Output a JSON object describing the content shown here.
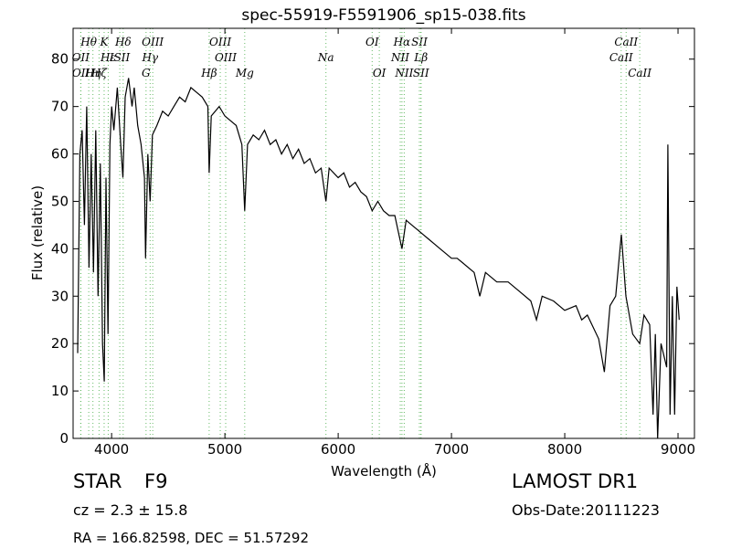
{
  "chart_data": {
    "type": "line",
    "title": "spec-55919-F5591906_sp15-038.fits",
    "xlabel": "Wavelength (Å)",
    "ylabel": "Flux (relative)",
    "xlim": [
      3660,
      9145
    ],
    "ylim": [
      0,
      86.5
    ],
    "xticks": [
      4000,
      5000,
      6000,
      7000,
      8000,
      9000
    ],
    "yticks": [
      0,
      10,
      20,
      30,
      40,
      50,
      60,
      70,
      80
    ],
    "color": "#000000",
    "line_color": "#66bb66",
    "x": [
      3700,
      3720,
      3740,
      3760,
      3780,
      3800,
      3820,
      3840,
      3860,
      3880,
      3900,
      3920,
      3935,
      3950,
      3968,
      3985,
      4000,
      4020,
      4050,
      4080,
      4100,
      4120,
      4150,
      4180,
      4200,
      4230,
      4260,
      4290,
      4300,
      4320,
      4340,
      4360,
      4400,
      4450,
      4500,
      4550,
      4600,
      4650,
      4700,
      4750,
      4800,
      4850,
      4861,
      4880,
      4950,
      5000,
      5050,
      5100,
      5150,
      5175,
      5200,
      5250,
      5300,
      5350,
      5400,
      5450,
      5500,
      5550,
      5600,
      5650,
      5700,
      5750,
      5800,
      5850,
      5892,
      5920,
      6000,
      6050,
      6100,
      6150,
      6200,
      6250,
      6300,
      6350,
      6400,
      6450,
      6500,
      6563,
      6600,
      6650,
      6700,
      6750,
      6800,
      6850,
      6900,
      6950,
      7000,
      7050,
      7100,
      7200,
      7250,
      7300,
      7400,
      7500,
      7600,
      7700,
      7750,
      7800,
      7900,
      8000,
      8100,
      8150,
      8200,
      8300,
      8350,
      8400,
      8450,
      8500,
      8540,
      8600,
      8662,
      8700,
      8750,
      8780,
      8800,
      8820,
      8850,
      8900,
      8910,
      8930,
      8950,
      8970,
      8990,
      9010
    ],
    "values": [
      18,
      60,
      65,
      45,
      70,
      36,
      60,
      35,
      65,
      30,
      58,
      20,
      12,
      55,
      22,
      62,
      70,
      65,
      74,
      62,
      55,
      72,
      76,
      70,
      74,
      66,
      62,
      55,
      38,
      60,
      50,
      64,
      66,
      69,
      68,
      70,
      72,
      71,
      74,
      73,
      72,
      70,
      56,
      68,
      70,
      68,
      67,
      66,
      62,
      48,
      62,
      64,
      63,
      65,
      62,
      63,
      60,
      62,
      59,
      61,
      58,
      59,
      56,
      57,
      50,
      57,
      55,
      56,
      53,
      54,
      52,
      51,
      48,
      50,
      48,
      47,
      47,
      40,
      46,
      45,
      44,
      43,
      42,
      41,
      40,
      39,
      38,
      38,
      37,
      35,
      30,
      35,
      33,
      33,
      31,
      29,
      25,
      30,
      29,
      27,
      28,
      25,
      26,
      21,
      14,
      28,
      30,
      43,
      30,
      22,
      20,
      26,
      24,
      5,
      22,
      0,
      20,
      15,
      62,
      5,
      30,
      5,
      32,
      25
    ],
    "lines": [
      {
        "label": "Hθ",
        "x": 3798,
        "row": 0
      },
      {
        "label": "K",
        "x": 3934,
        "row": 0
      },
      {
        "label": "Hδ",
        "x": 4102,
        "row": 0
      },
      {
        "label": "OIII",
        "x": 4363,
        "row": 0
      },
      {
        "label": "OIII",
        "x": 4959,
        "row": 0
      },
      {
        "label": "OI",
        "x": 6300,
        "row": 0
      },
      {
        "label": "Hα",
        "x": 6563,
        "row": 0
      },
      {
        "label": "SII",
        "x": 6717,
        "row": 0
      },
      {
        "label": "CaII",
        "x": 8542,
        "row": 0
      },
      {
        "label": "OII",
        "x": 3727,
        "row": 1
      },
      {
        "label": "Hε",
        "x": 3970,
        "row": 1
      },
      {
        "label": "ISII",
        "x": 4072,
        "row": 1
      },
      {
        "label": "Hγ",
        "x": 4340,
        "row": 1
      },
      {
        "label": "OIII",
        "x": 5007,
        "row": 1
      },
      {
        "label": "Na",
        "x": 5892,
        "row": 1
      },
      {
        "label": "NII",
        "x": 6548,
        "row": 1
      },
      {
        "label": "Lβ",
        "x": 6731,
        "row": 1
      },
      {
        "label": "CaII",
        "x": 8498,
        "row": 1
      },
      {
        "label": "OII",
        "x": 3729,
        "row": 2
      },
      {
        "label": "Hη",
        "x": 3835,
        "row": 2
      },
      {
        "label": "Hζ",
        "x": 3889,
        "row": 2
      },
      {
        "label": "G",
        "x": 4304,
        "row": 2
      },
      {
        "label": "Hβ",
        "x": 4861,
        "row": 2
      },
      {
        "label": "Mg",
        "x": 5175,
        "row": 2
      },
      {
        "label": "OI",
        "x": 6363,
        "row": 2
      },
      {
        "label": "NII",
        "x": 6583,
        "row": 2
      },
      {
        "label": "SII",
        "x": 6731,
        "row": 2
      },
      {
        "label": "CaII",
        "x": 8662,
        "row": 2
      }
    ]
  },
  "info": {
    "class": "STAR",
    "subclass": "F9",
    "cz": "cz = 2.3 ± 15.8",
    "radec": "RA = 166.82598, DEC = 51.57292",
    "survey": "LAMOST DR1",
    "date": "Obs-Date:20111223"
  }
}
